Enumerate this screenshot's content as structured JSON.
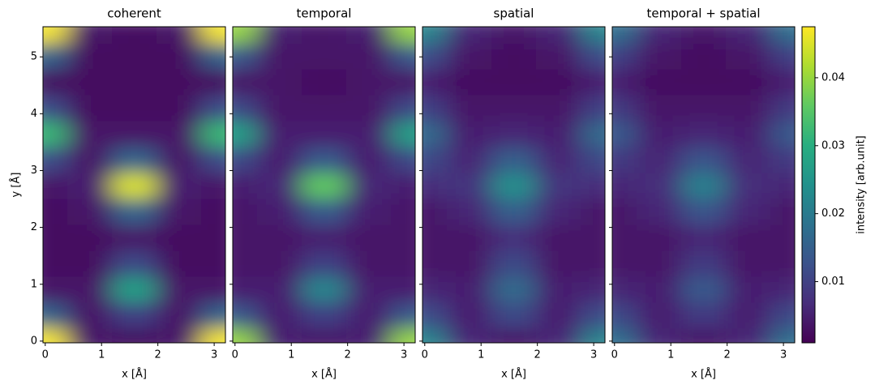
{
  "chart_data": [
    {
      "type": "heatmap",
      "title": "coherent",
      "xlabel": "x [Å]",
      "ylabel": "y [Å]",
      "xlim": [
        -0.04,
        3.2
      ],
      "ylim": [
        -0.03,
        5.53
      ],
      "xticks": [
        0,
        1,
        2,
        3
      ],
      "yticks": [
        0,
        1,
        2,
        3,
        4,
        5
      ],
      "x": [
        0,
        0.79,
        1.58,
        2.37,
        3.16
      ],
      "y": [
        0,
        0.456,
        0.91,
        1.37,
        1.82,
        2.28,
        2.74,
        3.19,
        3.65,
        4.1,
        4.56,
        5.02,
        5.47
      ],
      "z": [
        [
          0.047,
          0.004,
          0.003,
          0.004,
          0.047
        ],
        [
          0.016,
          0.004,
          0.01,
          0.004,
          0.016
        ],
        [
          0.004,
          0.004,
          0.027,
          0.004,
          0.004
        ],
        [
          0.003,
          0.003,
          0.011,
          0.003,
          0.003
        ],
        [
          0.003,
          0.003,
          0.004,
          0.003,
          0.003
        ],
        [
          0.003,
          0.004,
          0.016,
          0.004,
          0.003
        ],
        [
          0.004,
          0.005,
          0.045,
          0.005,
          0.004
        ],
        [
          0.012,
          0.004,
          0.016,
          0.004,
          0.012
        ],
        [
          0.032,
          0.004,
          0.004,
          0.004,
          0.032
        ],
        [
          0.012,
          0.003,
          0.003,
          0.003,
          0.012
        ],
        [
          0.003,
          0.003,
          0.003,
          0.003,
          0.003
        ],
        [
          0.016,
          0.003,
          0.003,
          0.003,
          0.016
        ],
        [
          0.047,
          0.004,
          0.003,
          0.004,
          0.047
        ]
      ]
    },
    {
      "type": "heatmap",
      "title": "temporal",
      "xlabel": "x [Å]",
      "xlim": [
        -0.04,
        3.2
      ],
      "ylim": [
        -0.03,
        5.53
      ],
      "xticks": [
        0,
        1,
        2,
        3
      ],
      "yticks": [
        0,
        1,
        2,
        3,
        4,
        5
      ],
      "x": [
        0,
        0.79,
        1.58,
        2.37,
        3.16
      ],
      "y": [
        0,
        0.456,
        0.91,
        1.37,
        1.82,
        2.28,
        2.74,
        3.19,
        3.65,
        4.1,
        4.56,
        5.02,
        5.47
      ],
      "z": [
        [
          0.04,
          0.005,
          0.004,
          0.005,
          0.04
        ],
        [
          0.014,
          0.005,
          0.01,
          0.005,
          0.014
        ],
        [
          0.005,
          0.005,
          0.022,
          0.005,
          0.005
        ],
        [
          0.004,
          0.004,
          0.01,
          0.004,
          0.004
        ],
        [
          0.004,
          0.004,
          0.005,
          0.004,
          0.004
        ],
        [
          0.004,
          0.005,
          0.014,
          0.005,
          0.004
        ],
        [
          0.005,
          0.006,
          0.036,
          0.006,
          0.005
        ],
        [
          0.011,
          0.005,
          0.014,
          0.005,
          0.011
        ],
        [
          0.027,
          0.005,
          0.005,
          0.005,
          0.027
        ],
        [
          0.011,
          0.004,
          0.004,
          0.004,
          0.011
        ],
        [
          0.004,
          0.004,
          0.003,
          0.004,
          0.004
        ],
        [
          0.014,
          0.004,
          0.004,
          0.004,
          0.014
        ],
        [
          0.04,
          0.005,
          0.004,
          0.005,
          0.04
        ]
      ]
    },
    {
      "type": "heatmap",
      "title": "spatial",
      "xlabel": "x [Å]",
      "xlim": [
        -0.04,
        3.2
      ],
      "ylim": [
        -0.03,
        5.53
      ],
      "xticks": [
        0,
        1,
        2,
        3
      ],
      "yticks": [
        0,
        1,
        2,
        3,
        4,
        5
      ],
      "x": [
        0,
        0.79,
        1.58,
        2.37,
        3.16
      ],
      "y": [
        0,
        0.456,
        0.91,
        1.37,
        1.82,
        2.28,
        2.74,
        3.19,
        3.65,
        4.1,
        4.56,
        5.02,
        5.47
      ],
      "z": [
        [
          0.022,
          0.006,
          0.004,
          0.006,
          0.022
        ],
        [
          0.012,
          0.005,
          0.011,
          0.005,
          0.012
        ],
        [
          0.006,
          0.005,
          0.017,
          0.005,
          0.006
        ],
        [
          0.004,
          0.004,
          0.011,
          0.004,
          0.004
        ],
        [
          0.004,
          0.004,
          0.007,
          0.004,
          0.004
        ],
        [
          0.004,
          0.006,
          0.015,
          0.006,
          0.004
        ],
        [
          0.007,
          0.008,
          0.024,
          0.008,
          0.007
        ],
        [
          0.011,
          0.006,
          0.015,
          0.006,
          0.011
        ],
        [
          0.017,
          0.005,
          0.006,
          0.005,
          0.017
        ],
        [
          0.01,
          0.004,
          0.004,
          0.004,
          0.01
        ],
        [
          0.005,
          0.003,
          0.003,
          0.003,
          0.005
        ],
        [
          0.012,
          0.004,
          0.003,
          0.004,
          0.012
        ],
        [
          0.022,
          0.006,
          0.004,
          0.006,
          0.022
        ]
      ]
    },
    {
      "type": "heatmap",
      "title": "temporal + spatial",
      "xlabel": "x [Å]",
      "xlim": [
        -0.04,
        3.2
      ],
      "ylim": [
        -0.03,
        5.53
      ],
      "xticks": [
        0,
        1,
        2,
        3
      ],
      "yticks": [
        0,
        1,
        2,
        3,
        4,
        5
      ],
      "x": [
        0,
        0.79,
        1.58,
        2.37,
        3.16
      ],
      "y": [
        0,
        0.456,
        0.91,
        1.37,
        1.82,
        2.28,
        2.74,
        3.19,
        3.65,
        4.1,
        4.56,
        5.02,
        5.47
      ],
      "z": [
        [
          0.018,
          0.006,
          0.004,
          0.006,
          0.018
        ],
        [
          0.011,
          0.005,
          0.009,
          0.005,
          0.011
        ],
        [
          0.006,
          0.005,
          0.014,
          0.005,
          0.006
        ],
        [
          0.004,
          0.004,
          0.009,
          0.004,
          0.004
        ],
        [
          0.004,
          0.004,
          0.006,
          0.004,
          0.004
        ],
        [
          0.004,
          0.006,
          0.013,
          0.006,
          0.004
        ],
        [
          0.006,
          0.007,
          0.021,
          0.007,
          0.006
        ],
        [
          0.009,
          0.006,
          0.013,
          0.006,
          0.009
        ],
        [
          0.014,
          0.005,
          0.006,
          0.005,
          0.014
        ],
        [
          0.009,
          0.004,
          0.004,
          0.004,
          0.009
        ],
        [
          0.005,
          0.003,
          0.003,
          0.003,
          0.005
        ],
        [
          0.01,
          0.004,
          0.003,
          0.004,
          0.01
        ],
        [
          0.018,
          0.006,
          0.004,
          0.006,
          0.018
        ]
      ]
    },
    {
      "type": "colorbar",
      "ylabel": "intensity [arb.unit]",
      "ylim": [
        0.001,
        0.0475
      ],
      "yticks": [
        0.01,
        0.02,
        0.03,
        0.04
      ]
    }
  ]
}
